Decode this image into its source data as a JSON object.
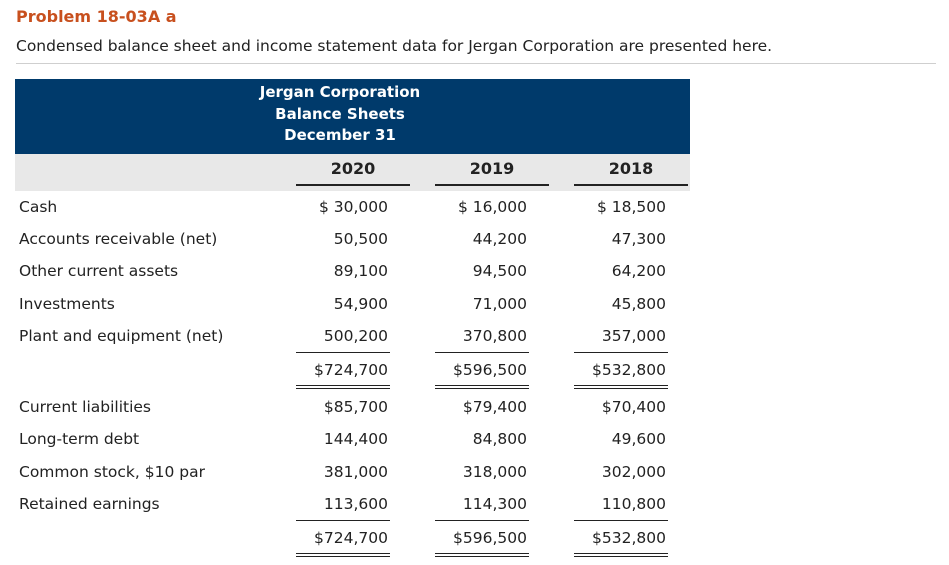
{
  "problem_title": "Problem 18-03A a",
  "intro": "Condensed balance sheet and income statement data for Jergan Corporation are presented here.",
  "header": {
    "company": "Jergan Corporation",
    "statement": "Balance Sheets",
    "date": "December 31"
  },
  "years": [
    "2020",
    "2019",
    "2018"
  ],
  "assets": [
    {
      "label": "Cash",
      "values": [
        "$ 30,000",
        "$ 16,000",
        "$ 18,500"
      ]
    },
    {
      "label": "Accounts receivable (net)",
      "values": [
        "50,500",
        "44,200",
        "47,300"
      ]
    },
    {
      "label": "Other current assets",
      "values": [
        "89,100",
        "94,500",
        "64,200"
      ]
    },
    {
      "label": "Investments",
      "values": [
        "54,900",
        "71,000",
        "45,800"
      ]
    },
    {
      "label": "Plant and equipment (net)",
      "values": [
        "500,200",
        "370,800",
        "357,000"
      ]
    }
  ],
  "assets_total": [
    "$724,700",
    "$596,500",
    "$532,800"
  ],
  "liabilities": [
    {
      "label": "Current liabilities",
      "values": [
        "$85,700",
        "$79,400",
        "$70,400"
      ]
    },
    {
      "label": "Long-term debt",
      "values": [
        "144,400",
        "84,800",
        "49,600"
      ]
    },
    {
      "label": "Common stock, $10 par",
      "values": [
        "381,000",
        "318,000",
        "302,000"
      ]
    },
    {
      "label": "Retained earnings",
      "values": [
        "113,600",
        "114,300",
        "110,800"
      ]
    }
  ],
  "liabilities_total": [
    "$724,700",
    "$596,500",
    "$532,800"
  ]
}
